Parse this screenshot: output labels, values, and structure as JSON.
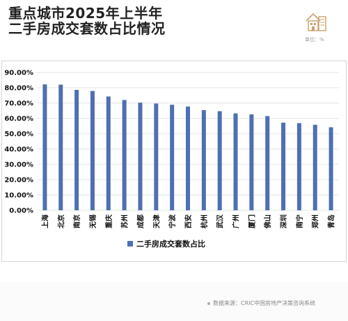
{
  "header": {
    "title_line1": "重点城市2025年上半年",
    "title_line2": "二手房成交套数占比情况",
    "unit_label": "单位：%"
  },
  "footer": {
    "source": "数据来源：CRIC中国房地产决策咨询系统"
  },
  "colors": {
    "bar": "#4e6fb3",
    "grid": "#e3e3e3",
    "axis_text": "#111111"
  },
  "chart_data": {
    "type": "bar",
    "categories": [
      "上海",
      "北京",
      "南京",
      "无锡",
      "重庆",
      "苏州",
      "成都",
      "天津",
      "宁波",
      "西安",
      "杭州",
      "武汉",
      "广州",
      "厦门",
      "佛山",
      "深圳",
      "南宁",
      "郑州",
      "青岛"
    ],
    "series": [
      {
        "name": "二手房成交套数占比",
        "values": [
          82.2,
          82.0,
          78.6,
          77.9,
          74.3,
          72.0,
          70.3,
          69.7,
          68.9,
          67.7,
          65.4,
          64.7,
          63.2,
          62.6,
          61.5,
          57.2,
          56.9,
          55.8,
          54.2
        ]
      }
    ],
    "yticks": [
      "0.00%",
      "10.00%",
      "20.00%",
      "30.00%",
      "40.00%",
      "50.00%",
      "60.00%",
      "70.00%",
      "80.00%",
      "90.00%"
    ],
    "ylim": [
      0,
      90
    ],
    "grid": true,
    "legend": "bottom"
  }
}
